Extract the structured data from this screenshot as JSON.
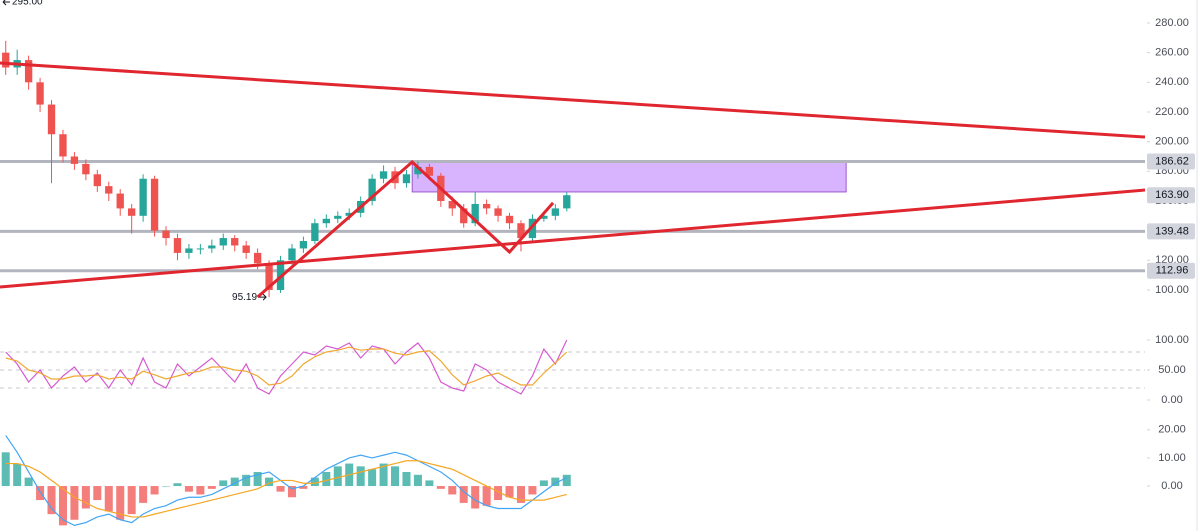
{
  "chart_data": [
    {
      "type": "candlestick",
      "xlim": [
        -0.5,
        99.5
      ],
      "ylim": [
        86.5,
        295.5
      ],
      "yticks": [
        {
          "value": 100,
          "label": "100.00"
        },
        {
          "value": 120,
          "label": "120.00"
        },
        {
          "value": 140,
          "label": "140.00"
        },
        {
          "value": 160,
          "label": "160.00"
        },
        {
          "value": 180,
          "label": "180.00"
        },
        {
          "value": 200,
          "label": "200.00"
        },
        {
          "value": 220,
          "label": "220.00"
        },
        {
          "value": 240,
          "label": "240.00"
        },
        {
          "value": 260,
          "label": "260.00"
        },
        {
          "value": 280,
          "label": "280.00"
        }
      ],
      "up_color": "#26a69a",
      "down_color": "#ef5350",
      "open": [
        260,
        250,
        255,
        240,
        225,
        205,
        190,
        185,
        178,
        170,
        165,
        155,
        150,
        175,
        140,
        135,
        125,
        128,
        128,
        130,
        135,
        130,
        125,
        118,
        100,
        120,
        128,
        133,
        145,
        148,
        150,
        152,
        160,
        175,
        180,
        172,
        178,
        183,
        177,
        160,
        155,
        145,
        158,
        155,
        150,
        145,
        135,
        148,
        150,
        155
      ],
      "high": [
        268,
        262,
        258,
        243,
        228,
        208,
        193,
        188,
        181,
        173,
        168,
        158,
        178,
        177,
        143,
        138,
        131,
        131,
        134,
        138,
        137,
        133,
        128,
        120,
        123,
        131,
        136,
        148,
        151,
        153,
        155,
        163,
        178,
        184,
        183,
        181,
        186.62,
        185,
        179,
        163,
        158,
        166,
        161,
        157,
        152,
        147,
        151,
        153,
        158,
        166
      ],
      "low": [
        245,
        245,
        235,
        220,
        172,
        186,
        181,
        174,
        166,
        160,
        150,
        138,
        146,
        136,
        130,
        120,
        121,
        124,
        125,
        127,
        126,
        121,
        114,
        95.19,
        98,
        117,
        125,
        131,
        142,
        145,
        147,
        149,
        157,
        172,
        168,
        169,
        175,
        174,
        156,
        150,
        142,
        143,
        151,
        146,
        141,
        126,
        132,
        146,
        147,
        153
      ],
      "close": [
        250,
        255,
        240,
        225,
        205,
        190,
        185,
        178,
        170,
        165,
        155,
        150,
        175,
        140,
        135,
        125,
        128,
        128,
        130,
        135,
        130,
        125,
        118,
        100,
        120,
        128,
        133,
        145,
        148,
        150,
        152,
        160,
        175,
        180,
        172,
        178,
        183,
        177,
        160,
        155,
        145,
        158,
        155,
        150,
        145,
        135,
        148,
        150,
        155,
        163.9
      ],
      "levels": [
        186.62,
        139.48,
        112.96
      ],
      "level_color": "#b2b5be",
      "last_price": {
        "value": 163.9,
        "label": "163.90"
      },
      "trend_lines": [
        {
          "x": [
            -0.5,
            99.5
          ],
          "y": [
            253.0,
            203.1
          ]
        },
        {
          "x": [
            -0.5,
            99.5
          ],
          "y": [
            102.0,
            167.4
          ]
        },
        {
          "x": [
            22.0,
            35.5,
            44.0,
            47.8
          ],
          "y": [
            95.3,
            186.3,
            125.6,
            158.7
          ]
        }
      ],
      "trend_color": "#e0262f",
      "zone": {
        "x": [
          35.5,
          73.4
        ],
        "y": [
          186.62,
          166.1
        ],
        "color": "#d8b4fe"
      },
      "low_label": "95.19",
      "high_label": "295.00"
    },
    {
      "type": "line",
      "xlim": [
        -0.5,
        99.5
      ],
      "ylim": [
        -15,
        115
      ],
      "yticks": [
        {
          "value": 100,
          "label": "100.00"
        },
        {
          "value": 50,
          "label": "50.00"
        },
        {
          "value": 0,
          "label": "0.00"
        }
      ],
      "bands": [
        80,
        50,
        20
      ],
      "series": [
        {
          "color": "#d65ad1",
          "values": [
            80,
            60,
            30,
            50,
            20,
            40,
            55,
            30,
            45,
            20,
            50,
            25,
            70,
            30,
            20,
            60,
            40,
            55,
            70,
            50,
            30,
            60,
            20,
            10,
            40,
            60,
            80,
            75,
            90,
            85,
            95,
            70,
            90,
            85,
            60,
            80,
            95,
            70,
            30,
            20,
            15,
            60,
            50,
            30,
            20,
            10,
            40,
            85,
            60,
            100
          ]
        },
        {
          "color": "#f0a830",
          "values": [
            70,
            65,
            50,
            45,
            35,
            35,
            40,
            40,
            42,
            35,
            38,
            35,
            48,
            42,
            35,
            40,
            45,
            48,
            55,
            55,
            50,
            48,
            40,
            25,
            28,
            40,
            60,
            72,
            80,
            83,
            88,
            83,
            85,
            85,
            78,
            75,
            80,
            82,
            65,
            42,
            25,
            32,
            40,
            45,
            35,
            25,
            25,
            45,
            62,
            80
          ]
        }
      ]
    },
    {
      "type": "bar",
      "xlim": [
        -0.5,
        99.5
      ],
      "ylim": [
        -16,
        23.5
      ],
      "yticks": [
        {
          "value": 20,
          "label": "20.00"
        },
        {
          "value": 10,
          "label": "10.00"
        },
        {
          "value": 0,
          "label": "0.00"
        }
      ],
      "up_color": "#26a69a",
      "down_color": "#ef5350",
      "values": [
        12,
        8,
        3,
        -5,
        -10,
        -14,
        -12,
        -8,
        -5,
        -9,
        -12,
        -10,
        -6,
        -3,
        0,
        1,
        -2,
        -3,
        -1,
        2,
        3,
        4,
        5,
        3,
        -2,
        -4,
        -1,
        3,
        5,
        7,
        8,
        7,
        6,
        8,
        7,
        5,
        4,
        2,
        -1,
        -3,
        -6,
        -8,
        -7,
        -5,
        -4,
        -6,
        -3,
        2,
        3,
        4
      ],
      "series": [
        {
          "color": "#42a5f5",
          "values": [
            18,
            12,
            5,
            -2,
            -8,
            -12,
            -14,
            -13,
            -11,
            -10,
            -12,
            -13,
            -10,
            -8,
            -7,
            -5,
            -4,
            -4,
            -3,
            -1,
            1,
            3,
            4,
            5,
            2,
            -1,
            0,
            3,
            6,
            8,
            10,
            11,
            10,
            11,
            12,
            11,
            9,
            7,
            5,
            2,
            -2,
            -5,
            -7,
            -8,
            -8,
            -8,
            -5,
            -2,
            1,
            3
          ]
        },
        {
          "color": "#f5a623",
          "values": [
            8,
            8,
            7,
            5,
            2,
            -1,
            -4,
            -6,
            -8,
            -9,
            -10,
            -11,
            -11,
            -10,
            -9,
            -8,
            -7,
            -6,
            -5,
            -4,
            -3,
            -2,
            -1,
            1,
            2,
            2,
            1,
            1,
            2,
            3,
            4,
            5,
            6,
            7,
            8,
            9,
            9,
            8,
            7,
            6,
            4,
            2,
            0,
            -2,
            -4,
            -5,
            -5,
            -5,
            -4,
            -3
          ]
        }
      ]
    }
  ]
}
